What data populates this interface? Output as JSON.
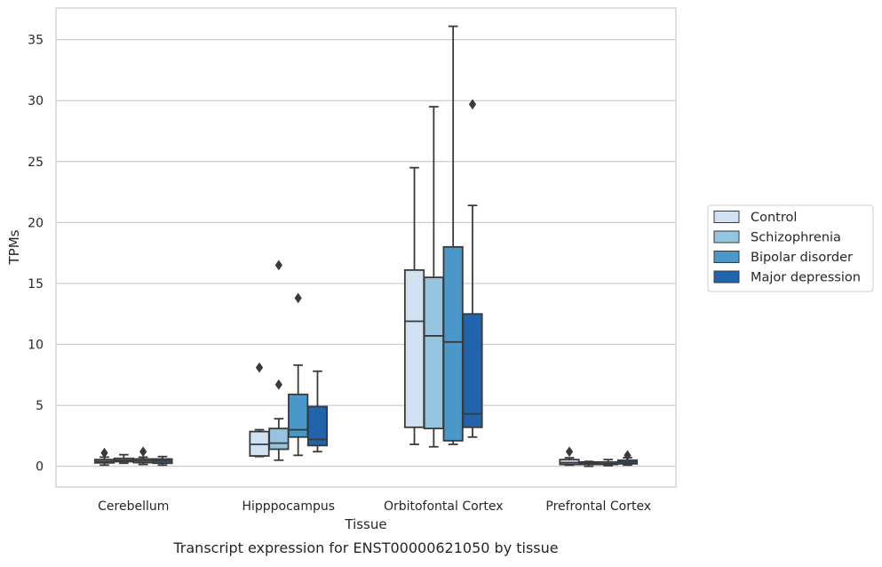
{
  "chart_data": {
    "type": "box",
    "title": "",
    "caption": "Transcript expression for ENST00000621050 by tissue",
    "xlabel": "Tissue",
    "ylabel": "TPMs",
    "ylim": [
      -1.7,
      37.6
    ],
    "yticks": [
      0,
      5,
      10,
      15,
      20,
      25,
      30,
      35
    ],
    "grid": "horizontal",
    "legend_position": "right",
    "categories": [
      "Cerebellum",
      "Hipppocampus",
      "Orbitofontal Cortex",
      "Prefrontal Cortex"
    ],
    "series": [
      {
        "name": "Control",
        "color": "#d0e1f2",
        "boxes": [
          {
            "whislo": 0.1,
            "q1": 0.28,
            "med": 0.4,
            "q3": 0.55,
            "whishi": 0.75,
            "fliers": [
              1.1
            ]
          },
          {
            "whislo": 0.8,
            "q1": 0.85,
            "med": 1.8,
            "q3": 2.85,
            "whishi": 3.0,
            "fliers": [
              8.1
            ]
          },
          {
            "whislo": 1.8,
            "q1": 3.2,
            "med": 11.9,
            "q3": 16.1,
            "whishi": 24.5,
            "fliers": []
          },
          {
            "whislo": 0.1,
            "q1": 0.15,
            "med": 0.3,
            "q3": 0.55,
            "whishi": 0.7,
            "fliers": [
              1.2
            ]
          }
        ]
      },
      {
        "name": "Schizophrenia",
        "color": "#94c4df",
        "boxes": [
          {
            "whislo": 0.25,
            "q1": 0.38,
            "med": 0.5,
            "q3": 0.65,
            "whishi": 0.95,
            "fliers": []
          },
          {
            "whislo": 0.5,
            "q1": 1.4,
            "med": 1.9,
            "q3": 3.1,
            "whishi": 3.9,
            "fliers": [
              6.7,
              16.5
            ]
          },
          {
            "whislo": 1.6,
            "q1": 3.1,
            "med": 10.7,
            "q3": 15.5,
            "whishi": 29.5,
            "fliers": []
          },
          {
            "whislo": 0.0,
            "q1": 0.15,
            "med": 0.25,
            "q3": 0.35,
            "whishi": 0.4,
            "fliers": []
          }
        ]
      },
      {
        "name": "Bipolar disorder",
        "color": "#4a98c9",
        "boxes": [
          {
            "whislo": 0.15,
            "q1": 0.3,
            "med": 0.45,
            "q3": 0.6,
            "whishi": 0.75,
            "fliers": [
              1.2
            ]
          },
          {
            "whislo": 0.9,
            "q1": 2.4,
            "med": 3.0,
            "q3": 5.9,
            "whishi": 8.3,
            "fliers": [
              13.8
            ]
          },
          {
            "whislo": 1.8,
            "q1": 2.1,
            "med": 10.2,
            "q3": 18.0,
            "whishi": 36.1,
            "fliers": []
          },
          {
            "whislo": 0.05,
            "q1": 0.15,
            "med": 0.2,
            "q3": 0.35,
            "whishi": 0.55,
            "fliers": []
          }
        ]
      },
      {
        "name": "Major depression",
        "color": "#2164ab",
        "boxes": [
          {
            "whislo": 0.1,
            "q1": 0.25,
            "med": 0.45,
            "q3": 0.6,
            "whishi": 0.8,
            "fliers": []
          },
          {
            "whislo": 1.2,
            "q1": 1.7,
            "med": 2.2,
            "q3": 4.9,
            "whishi": 7.8,
            "fliers": []
          },
          {
            "whislo": 2.4,
            "q1": 3.2,
            "med": 4.3,
            "q3": 12.5,
            "whishi": 21.4,
            "fliers": [
              29.7
            ]
          },
          {
            "whislo": 0.1,
            "q1": 0.2,
            "med": 0.35,
            "q3": 0.5,
            "whishi": 0.7,
            "fliers": [
              0.9
            ]
          }
        ]
      }
    ]
  }
}
